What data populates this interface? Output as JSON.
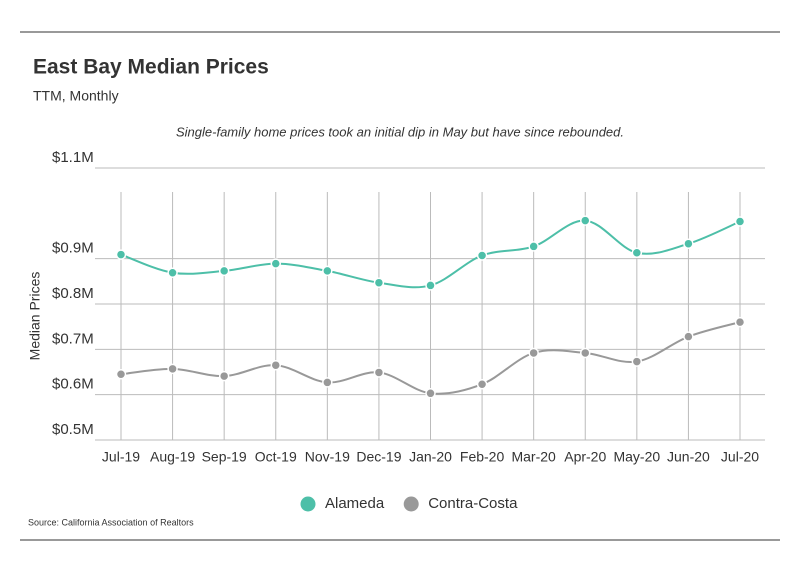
{
  "chart_data": {
    "type": "line",
    "title": "East Bay Median Prices",
    "subtitle": "TTM, Monthly",
    "annotation": "Single-family home prices took an initial dip in May but have since rebounded.",
    "y_label": "Median Prices",
    "source": "Source:  California Association of Realtors",
    "categories": [
      "Jul-19",
      "Aug-19",
      "Sep-19",
      "Oct-19",
      "Nov-19",
      "Dec-19",
      "Jan-20",
      "Feb-20",
      "Mar-20",
      "Apr-20",
      "May-20",
      "Jun-20",
      "Jul-20"
    ],
    "series": [
      {
        "name": "Alameda",
        "color": "#4dbfa8",
        "values": [
          909000,
          869000,
          873000,
          889000,
          873000,
          847000,
          841000,
          907000,
          927000,
          984000,
          913000,
          933000,
          982000
        ]
      },
      {
        "name": "Contra-Costa",
        "color": "#999999",
        "values": [
          645000,
          657000,
          641000,
          665000,
          627000,
          649000,
          603000,
          623000,
          692000,
          692000,
          673000,
          728000,
          760000
        ]
      }
    ],
    "ylim": [
      500000,
      1100000
    ],
    "yticks": [
      {
        "value": 500000,
        "label": "$0.5M"
      },
      {
        "value": 600000,
        "label": "$0.6M"
      },
      {
        "value": 700000,
        "label": "$0.7M"
      },
      {
        "value": 800000,
        "label": "$0.8M"
      },
      {
        "value": 900000,
        "label": "$0.9M"
      },
      {
        "value": 1100000,
        "label": "$1.1M"
      }
    ],
    "grid": true,
    "legend": "bottom"
  }
}
